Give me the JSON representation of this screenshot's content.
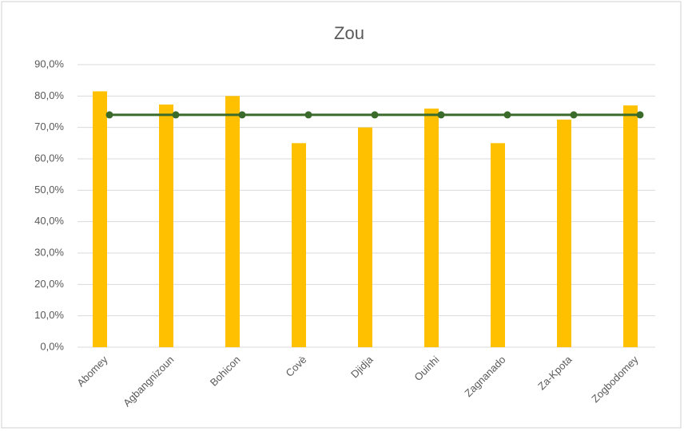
{
  "chart_data": {
    "type": "combo",
    "title": "Zou",
    "categories": [
      "Abomey",
      "Agbangnizoun",
      "Bohicon",
      "Covè",
      "Djidja",
      "Ouinhi",
      "Zagnanado",
      "Za-Kpota",
      "Zogbodomey"
    ],
    "series": [
      {
        "type": "bar",
        "color": "#ffc000",
        "values": [
          81.5,
          77.3,
          80,
          65,
          70,
          76,
          65,
          72.5,
          77
        ]
      },
      {
        "type": "line",
        "color": "#3a6b2a",
        "values": [
          74,
          74,
          74,
          74,
          74,
          74,
          74,
          74,
          74
        ]
      }
    ],
    "ylim": [
      0,
      90
    ],
    "yticks": [
      {
        "value": 0,
        "label": "0,0%"
      },
      {
        "value": 10,
        "label": "10,0%"
      },
      {
        "value": 20,
        "label": "20,0%"
      },
      {
        "value": 30,
        "label": "30,0%"
      },
      {
        "value": 40,
        "label": "40,0%"
      },
      {
        "value": 50,
        "label": "50,0%"
      },
      {
        "value": 60,
        "label": "60,0%"
      },
      {
        "value": 70,
        "label": "70,0%"
      },
      {
        "value": 80,
        "label": "80,0%"
      },
      {
        "value": 90,
        "label": "90,0%"
      }
    ],
    "grid": true
  }
}
